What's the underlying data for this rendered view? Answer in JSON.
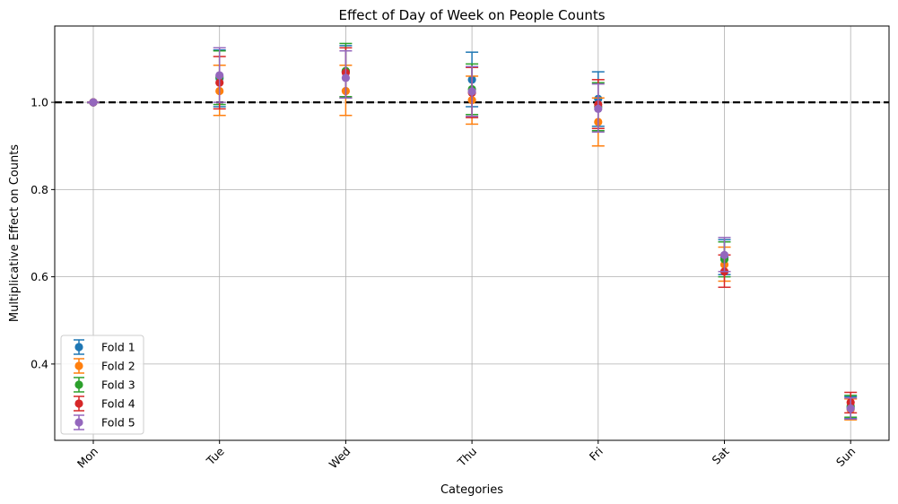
{
  "chart_data": {
    "type": "scatter",
    "title": "Effect of Day of Week on People Counts",
    "xlabel": "Categories",
    "ylabel": "Multiplicative Effect on Counts",
    "categories": [
      "Mon",
      "Tue",
      "Wed",
      "Thu",
      "Fri",
      "Sat",
      "Sun"
    ],
    "ylim": [
      0.225,
      1.175
    ],
    "yticks": [
      0.4,
      0.6,
      0.8,
      1.0
    ],
    "ytick_labels": [
      "0.4",
      "0.6",
      "0.8",
      "1.0"
    ],
    "grid": true,
    "legend_position": "lower-left",
    "reference_line": {
      "y": 1.0,
      "style": "dashed",
      "color": "#000000"
    },
    "series": [
      {
        "name": "Fold 1",
        "color": "#1f77b4",
        "values": [
          1.0,
          1.055,
          1.07,
          1.052,
          1.008,
          0.645,
          0.3
        ],
        "err_low": [
          1.0,
          0.99,
          1.01,
          0.99,
          0.945,
          0.605,
          0.275
        ],
        "err_high": [
          1.0,
          1.12,
          1.13,
          1.115,
          1.07,
          0.685,
          0.325
        ]
      },
      {
        "name": "Fold 2",
        "color": "#ff7f0e",
        "values": [
          1.0,
          1.026,
          1.026,
          1.005,
          0.955,
          0.628,
          0.296
        ],
        "err_low": [
          1.0,
          0.97,
          0.97,
          0.95,
          0.9,
          0.59,
          0.272
        ],
        "err_high": [
          1.0,
          1.085,
          1.085,
          1.06,
          1.01,
          0.668,
          0.32
        ]
      },
      {
        "name": "Fold 3",
        "color": "#2ca02c",
        "values": [
          1.0,
          1.058,
          1.072,
          1.03,
          0.99,
          0.64,
          0.303
        ],
        "err_low": [
          1.0,
          0.995,
          1.013,
          0.972,
          0.935,
          0.6,
          0.278
        ],
        "err_high": [
          1.0,
          1.118,
          1.135,
          1.088,
          1.045,
          0.68,
          0.328
        ]
      },
      {
        "name": "Fold 4",
        "color": "#d62728",
        "values": [
          1.0,
          1.045,
          1.068,
          1.022,
          0.995,
          0.612,
          0.312
        ],
        "err_low": [
          1.0,
          0.985,
          1.01,
          0.965,
          0.94,
          0.576,
          0.288
        ],
        "err_high": [
          1.0,
          1.105,
          1.125,
          1.08,
          1.052,
          0.65,
          0.335
        ]
      },
      {
        "name": "Fold 5",
        "color": "#9467bd",
        "values": [
          1.0,
          1.062,
          1.056,
          1.025,
          0.985,
          0.65,
          0.298
        ],
        "err_low": [
          1.0,
          1.0,
          1.01,
          0.968,
          0.932,
          0.612,
          0.274
        ],
        "err_high": [
          1.0,
          1.125,
          1.118,
          1.082,
          1.042,
          0.69,
          0.322
        ]
      }
    ]
  }
}
